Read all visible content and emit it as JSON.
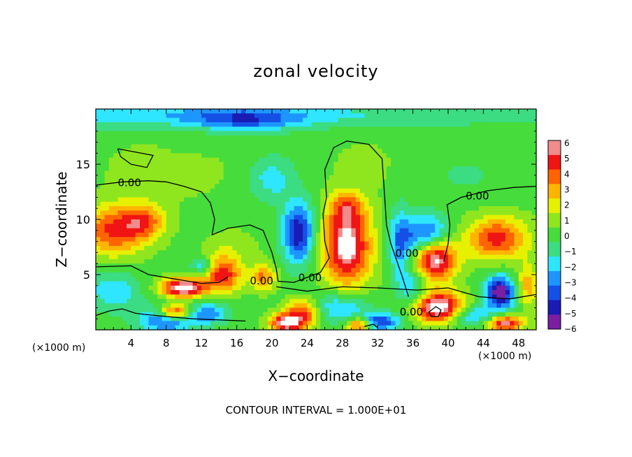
{
  "chart_data": {
    "type": "heatmap",
    "title": "zonal velocity",
    "xlabel": "X−coordinate",
    "ylabel": "Z−coordinate",
    "x_unit_label": "(×1000 m)",
    "xlim": [
      0,
      50
    ],
    "ylim": [
      0,
      20
    ],
    "x_ticks": [
      4,
      8,
      12,
      16,
      20,
      24,
      28,
      32,
      36,
      40,
      44,
      48
    ],
    "y_ticks": [
      5,
      10,
      15
    ],
    "colorbar": {
      "ticks": [
        6,
        5,
        4,
        3,
        2,
        1,
        0,
        "−1",
        "−2",
        "−3",
        "−4",
        "−5",
        "−6"
      ],
      "range": [
        -6,
        6
      ],
      "colors": [
        "#7a1fa2",
        "#1a1ab4",
        "#1450e6",
        "#1e96ff",
        "#2ee6ff",
        "#3cdc82",
        "#46dc3c",
        "#8fe61e",
        "#e6f000",
        "#ffb400",
        "#ff6400",
        "#f01414",
        "#f08c8c"
      ]
    },
    "contour_labels": [
      {
        "x": 2.5,
        "y": 13.0,
        "text": "0.00"
      },
      {
        "x": 42.0,
        "y": 11.8,
        "text": "0.00"
      },
      {
        "x": 23.0,
        "y": 4.4,
        "text": "0.00"
      },
      {
        "x": 17.5,
        "y": 4.1,
        "text": "0.00"
      },
      {
        "x": 34.0,
        "y": 6.6,
        "text": "0.00"
      },
      {
        "x": 34.5,
        "y": 1.3,
        "text": "0.00"
      }
    ],
    "features": [
      {
        "x": 0,
        "y": 19.5,
        "sx": 48,
        "sy": 1.2,
        "value": -2.5
      },
      {
        "x": 17,
        "y": 19.0,
        "sx": 6,
        "sy": 1.0,
        "value": -3
      },
      {
        "x": 20,
        "y": 13.7,
        "sx": 2.5,
        "sy": 2.0,
        "value": -2.2
      },
      {
        "x": 8,
        "y": 14.5,
        "sx": 6,
        "sy": 2.5,
        "value": 1.2
      },
      {
        "x": 2,
        "y": 9.0,
        "sx": 3.5,
        "sy": 2.3,
        "value": 4.5
      },
      {
        "x": 5.5,
        "y": 9.8,
        "sx": 2.5,
        "sy": 1.6,
        "value": 3.5
      },
      {
        "x": 23,
        "y": 8.8,
        "sx": 1.8,
        "sy": 2.8,
        "value": -5.5
      },
      {
        "x": 28.5,
        "y": 7.5,
        "sx": 2.8,
        "sy": 3.5,
        "value": 6.5
      },
      {
        "x": 28.5,
        "y": 11.0,
        "sx": 2.0,
        "sy": 1.5,
        "value": 3.0
      },
      {
        "x": 34.5,
        "y": 7.5,
        "sx": 1.2,
        "sy": 3.5,
        "value": -3.0
      },
      {
        "x": 38.5,
        "y": 6.5,
        "sx": 2.4,
        "sy": 2.0,
        "value": 7.0
      },
      {
        "x": 37.5,
        "y": 8.5,
        "sx": 2.8,
        "sy": 1.8,
        "value": -5.0
      },
      {
        "x": 45.5,
        "y": 8.3,
        "sx": 3.5,
        "sy": 1.9,
        "value": 4.8
      },
      {
        "x": 46.0,
        "y": 3.3,
        "sx": 1.8,
        "sy": 1.6,
        "value": -5.0
      },
      {
        "x": 45.5,
        "y": 3.6,
        "sx": 1.2,
        "sy": 1.2,
        "value": -2.0
      },
      {
        "x": 39.0,
        "y": 2.0,
        "sx": 3.0,
        "sy": 1.4,
        "value": 7.0
      },
      {
        "x": 10.0,
        "y": 3.8,
        "sx": 2.5,
        "sy": 0.9,
        "value": 7.0
      },
      {
        "x": 14.5,
        "y": 5.0,
        "sx": 2.0,
        "sy": 1.6,
        "value": 5.0
      },
      {
        "x": 9.0,
        "y": 1.6,
        "sx": 2.0,
        "sy": 0.7,
        "value": 7.0
      },
      {
        "x": 8.0,
        "y": 1.0,
        "sx": 3.0,
        "sy": 1.2,
        "value": -4.5
      },
      {
        "x": 12.5,
        "y": 1.5,
        "sx": 2.5,
        "sy": 1.0,
        "value": -3.5
      },
      {
        "x": 2.0,
        "y": 3.5,
        "sx": 3.0,
        "sy": 1.8,
        "value": -2.5
      },
      {
        "x": 19.0,
        "y": 4.8,
        "sx": 1.5,
        "sy": 1.2,
        "value": 3.5
      },
      {
        "x": 23.5,
        "y": 1.5,
        "sx": 2.0,
        "sy": 1.3,
        "value": 5.0
      },
      {
        "x": 21.5,
        "y": 0.6,
        "sx": 1.8,
        "sy": 0.8,
        "value": 6.0
      },
      {
        "x": 27.5,
        "y": 2.0,
        "sx": 3.5,
        "sy": 1.4,
        "value": -3.0
      },
      {
        "x": 30.0,
        "y": 0.5,
        "sx": 1.5,
        "sy": 0.7,
        "value": 6.0
      },
      {
        "x": 32.0,
        "y": 0.7,
        "sx": 2.5,
        "sy": 0.8,
        "value": -5.0
      },
      {
        "x": 36.0,
        "y": 3.8,
        "sx": 1.5,
        "sy": 1.8,
        "value": -2.5
      },
      {
        "x": 42.5,
        "y": 1.3,
        "sx": 2.5,
        "sy": 1.0,
        "value": -3.5
      },
      {
        "x": 46.5,
        "y": 0.6,
        "sx": 2.0,
        "sy": 0.7,
        "value": 6.0
      },
      {
        "x": 49.0,
        "y": 4.0,
        "sx": 1.2,
        "sy": 2.0,
        "value": 3.0
      },
      {
        "x": 15.5,
        "y": 7.5,
        "sx": 3.0,
        "sy": 1.5,
        "value": 1.0
      },
      {
        "x": 12.0,
        "y": 5.8,
        "sx": 1.2,
        "sy": 0.7,
        "value": -2.5
      },
      {
        "x": 30.5,
        "y": 15.0,
        "sx": 4.0,
        "sy": 2.5,
        "value": 0.6
      },
      {
        "x": 42.0,
        "y": 14.0,
        "sx": 4.0,
        "sy": 2.0,
        "value": -0.8
      },
      {
        "x": 10.0,
        "y": 16.5,
        "sx": 3.0,
        "sy": 1.0,
        "value": -0.6
      }
    ],
    "contours": [
      [
        [
          0,
          13.1
        ],
        [
          3,
          13.4
        ],
        [
          6,
          13.5
        ],
        [
          8,
          13.4
        ],
        [
          10,
          13.0
        ],
        [
          12,
          12.5
        ],
        [
          13,
          11.5
        ],
        [
          13.5,
          10.0
        ],
        [
          13.2,
          8.6
        ],
        [
          15,
          9.2
        ],
        [
          17.5,
          9.5
        ],
        [
          19,
          9.0
        ],
        [
          20,
          7.0
        ],
        [
          20.5,
          5.5
        ],
        [
          20.7,
          4.4
        ],
        [
          22.5,
          4.3
        ],
        [
          25.5,
          5.2
        ],
        [
          26.5,
          6.5
        ],
        [
          26,
          8.0
        ],
        [
          25.8,
          10.5
        ],
        [
          26.2,
          12.0
        ],
        [
          26,
          14.5
        ],
        [
          27,
          16.5
        ],
        [
          28.5,
          17.1
        ],
        [
          31,
          16.8
        ],
        [
          32.5,
          15.5
        ],
        [
          32.8,
          12.0
        ],
        [
          33,
          9.5
        ],
        [
          33.5,
          7.8
        ],
        [
          34.8,
          4.8
        ],
        [
          35.5,
          3.0
        ]
      ],
      [
        [
          39.8,
          11.3
        ],
        [
          41.5,
          12.0
        ],
        [
          44.5,
          12.6
        ],
        [
          47.5,
          12.9
        ],
        [
          50,
          13.0
        ]
      ],
      [
        [
          39.9,
          11.3
        ],
        [
          40.2,
          9.5
        ],
        [
          40.0,
          7.8
        ],
        [
          39.5,
          6.2
        ]
      ],
      [
        [
          2.5,
          16.4
        ],
        [
          4.5,
          16.1
        ],
        [
          6.5,
          15.8
        ],
        [
          5.8,
          14.7
        ],
        [
          4.0,
          15.0
        ],
        [
          2.8,
          15.7
        ],
        [
          2.5,
          16.4
        ]
      ],
      [
        [
          0,
          5.7
        ],
        [
          4,
          5.8
        ],
        [
          6,
          5.0
        ],
        [
          9,
          4.6
        ],
        [
          12,
          4.2
        ],
        [
          14,
          4.3
        ],
        [
          15,
          4.8
        ]
      ],
      [
        [
          20.5,
          3.9
        ],
        [
          24,
          3.5
        ],
        [
          28,
          3.9
        ],
        [
          32,
          3.8
        ],
        [
          36.5,
          3.6
        ],
        [
          40,
          3.8
        ],
        [
          43.5,
          3.0
        ],
        [
          47,
          2.8
        ],
        [
          50,
          3.2
        ]
      ],
      [
        [
          0,
          1.3
        ],
        [
          1.5,
          1.7
        ],
        [
          3,
          1.9
        ],
        [
          4.5,
          1.5
        ],
        [
          5.5,
          1.4
        ],
        [
          8,
          1.2
        ],
        [
          11,
          1.0
        ],
        [
          14,
          0.9
        ],
        [
          17,
          0.8
        ]
      ],
      [
        [
          37.8,
          1.6
        ],
        [
          38.6,
          2.1
        ],
        [
          39.2,
          1.8
        ],
        [
          38.9,
          1.2
        ],
        [
          38.1,
          1.2
        ],
        [
          37.8,
          1.6
        ]
      ],
      [
        [
          30.5,
          0.3
        ],
        [
          31.5,
          0.5
        ],
        [
          32,
          0.2
        ]
      ]
    ]
  },
  "footnote": "CONTOUR INTERVAL = 1.000E+01"
}
